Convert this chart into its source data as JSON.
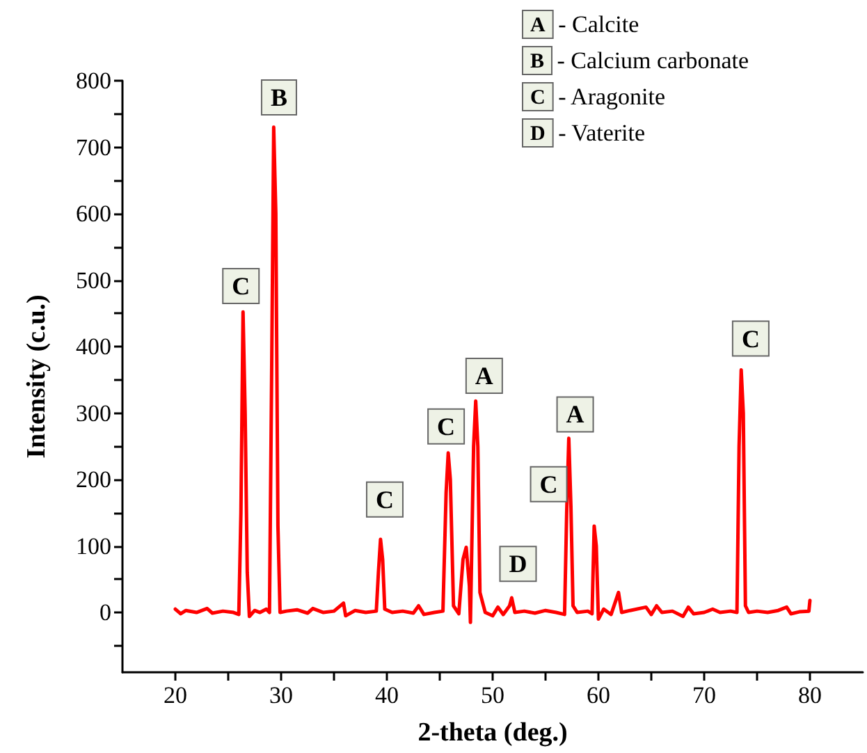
{
  "chart_data": {
    "type": "line",
    "xlabel": "2-theta (deg.)",
    "ylabel": "Intensity (c.u.)",
    "x": [
      20,
      20.5,
      21,
      22,
      23,
      23.5,
      24.5,
      25.5,
      26.0,
      26.2,
      26.4,
      26.6,
      26.8,
      27,
      27.5,
      28,
      28.6,
      28.9,
      29.1,
      29.3,
      29.5,
      29.7,
      29.9,
      30.5,
      31.5,
      32.5,
      33,
      34,
      35,
      35.9,
      36.1,
      37,
      38,
      39.0,
      39.2,
      39.4,
      39.6,
      39.8,
      40.5,
      41.5,
      42.5,
      43,
      43.5,
      44.5,
      45.3,
      45.6,
      45.8,
      46.0,
      46.3,
      46.8,
      47.2,
      47.5,
      47.8,
      47.9,
      48.2,
      48.4,
      48.6,
      48.8,
      49.3,
      50,
      50.5,
      51,
      51.6,
      51.8,
      52.1,
      53,
      54,
      55,
      56,
      56.8,
      57.0,
      57.2,
      57.4,
      57.6,
      58,
      59,
      59.4,
      59.6,
      59.8,
      60,
      60.5,
      61.2,
      61.9,
      62.2,
      63,
      64.5,
      65,
      65.5,
      66,
      67,
      68,
      68.5,
      69,
      70,
      70.8,
      71.5,
      72.5,
      73.1,
      73.3,
      73.5,
      73.7,
      73.9,
      74.2,
      75,
      76,
      77,
      77.8,
      78.2,
      79,
      79.9,
      80
    ],
    "series": [
      {
        "color": "#ff0000",
        "values": [
          5,
          -2,
          3,
          0,
          6,
          -1,
          2,
          0,
          -3,
          150,
          452,
          300,
          60,
          -6,
          3,
          0,
          5,
          0,
          350,
          730,
          600,
          130,
          0,
          2,
          4,
          -1,
          6,
          0,
          2,
          14,
          -5,
          3,
          0,
          2,
          60,
          110,
          80,
          5,
          0,
          2,
          -1,
          10,
          -3,
          0,
          2,
          180,
          240,
          200,
          10,
          -2,
          80,
          98,
          40,
          -15,
          250,
          318,
          250,
          30,
          0,
          -5,
          8,
          -3,
          10,
          22,
          0,
          2,
          -1,
          3,
          0,
          -3,
          150,
          262,
          160,
          10,
          0,
          2,
          -2,
          130,
          100,
          -10,
          5,
          -3,
          30,
          0,
          3,
          8,
          -3,
          10,
          0,
          2,
          -6,
          8,
          -2,
          0,
          5,
          0,
          2,
          0,
          250,
          365,
          300,
          10,
          0,
          2,
          0,
          3,
          8,
          -2,
          1,
          2,
          18
        ]
      }
    ],
    "xlim": [
      15,
      85
    ],
    "xticks": [
      20,
      {
        "value": 25,
        "label": null
      },
      30,
      {
        "value": 35,
        "label": null
      },
      40,
      {
        "value": 45,
        "label": null
      },
      50,
      {
        "value": 55,
        "label": null
      },
      60,
      {
        "value": 65,
        "label": null
      },
      70,
      {
        "value": 75,
        "label": null
      },
      80
    ],
    "ylim": [
      -90,
      800
    ],
    "yticks": [
      {
        "value": -50,
        "label": null
      },
      0,
      {
        "value": 50,
        "label": null
      },
      100,
      {
        "value": 150,
        "label": null
      },
      200,
      {
        "value": 250,
        "label": null
      },
      300,
      {
        "value": 350,
        "label": null
      },
      400,
      {
        "value": 450,
        "label": null
      },
      500,
      {
        "value": 550,
        "label": null
      },
      600,
      {
        "value": 650,
        "label": null
      },
      700,
      {
        "value": 750,
        "label": null
      },
      800
    ],
    "annotations": [
      {
        "text": "C",
        "x": 26.2,
        "y": 491
      },
      {
        "text": "B",
        "x": 29.8,
        "y": 775
      },
      {
        "text": "C",
        "x": 39.8,
        "y": 170
      },
      {
        "text": "C",
        "x": 45.6,
        "y": 280
      },
      {
        "text": "A",
        "x": 49.2,
        "y": 356
      },
      {
        "text": "D",
        "x": 52.4,
        "y": 73
      },
      {
        "text": "C",
        "x": 55.3,
        "y": 193
      },
      {
        "text": "A",
        "x": 57.8,
        "y": 298
      },
      {
        "text": "C",
        "x": 74.4,
        "y": 412
      },
      "A - Calcite",
      "B - Calcium carbonate",
      "C - Aragonite",
      "D - Vaterite"
    ],
    "marker": "none",
    "line_style": "solid"
  }
}
